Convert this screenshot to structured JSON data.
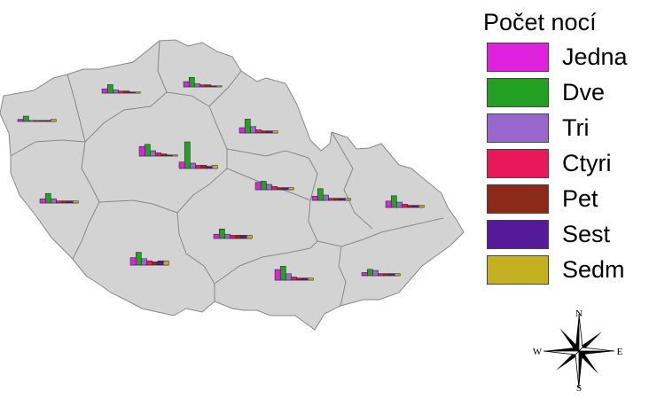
{
  "legend": {
    "title": "Počet nocí",
    "items": [
      {
        "label": "Jedna",
        "color": "#dd22dd"
      },
      {
        "label": "Dve",
        "color": "#22a022"
      },
      {
        "label": "Tri",
        "color": "#9966cc"
      },
      {
        "label": "Ctyri",
        "color": "#e8185a"
      },
      {
        "label": "Pet",
        "color": "#8b2a18"
      },
      {
        "label": "Sest",
        "color": "#55199a"
      },
      {
        "label": "Sedm",
        "color": "#c4b020"
      }
    ]
  },
  "compass": {
    "n": "N",
    "s": "S",
    "e": "E",
    "w": "W"
  },
  "map": {
    "fill": "#d3d3d3",
    "stroke": "#888888",
    "regions": [
      {
        "id": "karlovarsky",
        "nights": [
          2,
          5,
          1,
          1,
          1,
          1,
          2
        ]
      },
      {
        "id": "ustecky",
        "nights": [
          4,
          8,
          3,
          2,
          2,
          1,
          1
        ]
      },
      {
        "id": "liberecky",
        "nights": [
          5,
          9,
          3,
          2,
          2,
          1,
          1
        ]
      },
      {
        "id": "praha",
        "nights": [
          9,
          11,
          5,
          3,
          2,
          1,
          1
        ]
      },
      {
        "id": "stredocesky",
        "nights": [
          6,
          25,
          5,
          3,
          3,
          2,
          3
        ]
      },
      {
        "id": "kralovehradecky",
        "nights": [
          5,
          13,
          6,
          3,
          2,
          2,
          2
        ]
      },
      {
        "id": "plzensky",
        "nights": [
          4,
          9,
          4,
          2,
          2,
          2,
          2
        ]
      },
      {
        "id": "pardubicky",
        "nights": [
          7,
          8,
          5,
          3,
          2,
          2,
          2
        ]
      },
      {
        "id": "olomoucky",
        "nights": [
          4,
          11,
          5,
          2,
          2,
          2,
          2
        ]
      },
      {
        "id": "moravskoslezsky",
        "nights": [
          6,
          11,
          5,
          3,
          2,
          2,
          2
        ]
      },
      {
        "id": "jihocesky",
        "nights": [
          7,
          12,
          6,
          4,
          3,
          4,
          4
        ]
      },
      {
        "id": "vysocina",
        "nights": [
          4,
          9,
          4,
          3,
          3,
          3,
          3
        ]
      },
      {
        "id": "jihomoravsky",
        "nights": [
          10,
          13,
          6,
          3,
          2,
          2,
          2
        ]
      },
      {
        "id": "zlinsky",
        "nights": [
          3,
          6,
          5,
          2,
          2,
          2,
          2
        ]
      }
    ]
  }
}
